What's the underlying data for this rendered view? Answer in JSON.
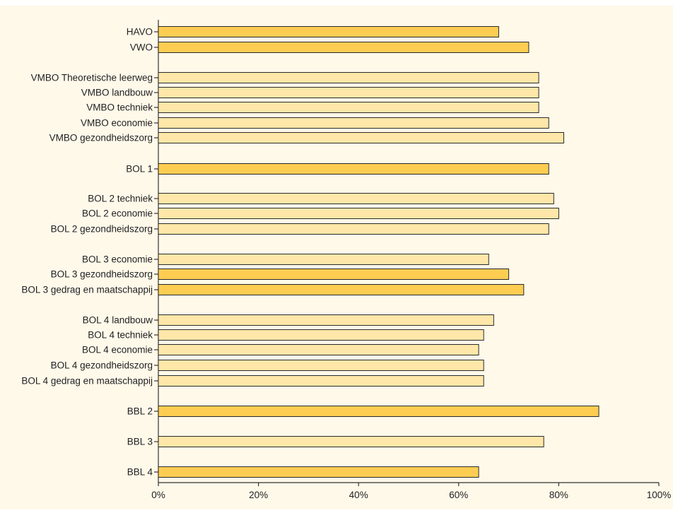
{
  "chart_data": {
    "type": "bar",
    "orientation": "horizontal",
    "categories": [
      "HAVO",
      "VWO",
      "VMBO Theoretische leerweg",
      "VMBO landbouw",
      "VMBO techniek",
      "VMBO economie",
      "VMBO gezondheidszorg",
      "BOL 1",
      "BOL 2 techniek",
      "BOL 2 economie",
      "BOL 2 gezondheidszorg",
      "BOL 3 economie",
      "BOL 3 gezondheidszorg",
      "BOL 3 gedrag en maatschappij",
      "BOL 4 landbouw",
      "BOL 4 techniek",
      "BOL 4 economie",
      "BOL 4 gezondheidszorg",
      "BOL 4 gedrag en maatschappij",
      "BBL 2",
      "BBL 3",
      "BBL 4"
    ],
    "values": [
      68,
      74,
      76,
      76,
      76,
      78,
      81,
      78,
      79,
      80,
      78,
      66,
      70,
      73,
      67,
      65,
      64,
      65,
      65,
      88,
      77,
      64
    ],
    "bar_style": [
      "dark",
      "dark",
      "light",
      "light",
      "light",
      "light",
      "light",
      "dark",
      "light",
      "light",
      "light",
      "light",
      "dark",
      "dark",
      "light",
      "light",
      "light",
      "light",
      "light",
      "dark",
      "light",
      "dark"
    ],
    "xlim": [
      0,
      100
    ],
    "x_tick_labels": [
      "0%",
      "20%",
      "40%",
      "60%",
      "80%",
      "100%"
    ],
    "x_ticks": [
      0,
      20,
      40,
      60,
      80,
      100
    ],
    "grid": false,
    "legend": "none",
    "title": "",
    "xlabel": "",
    "ylabel": "",
    "colors": {
      "background": "#fff9ea",
      "bar_dark": "#fdcd52",
      "bar_light": "#fee7a8",
      "bar_stroke": "#2a2a2a",
      "axis": "#333333"
    }
  }
}
